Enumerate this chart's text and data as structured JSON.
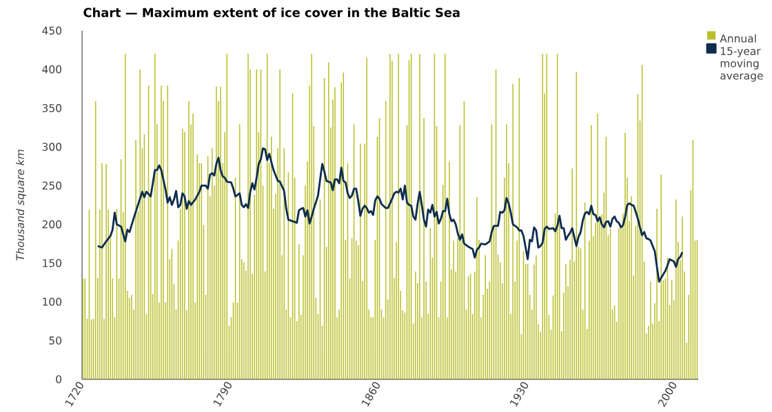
{
  "chart_data": {
    "type": "bar",
    "title": "Chart — Maximum extent of ice cover in the Baltic Sea",
    "ylabel": "Thousand square km",
    "x": [
      1720,
      1721,
      1722,
      1723,
      1724,
      1725,
      1726,
      1727,
      1728,
      1729,
      1730,
      1731,
      1732,
      1733,
      1734,
      1735,
      1736,
      1737,
      1738,
      1739,
      1740,
      1741,
      1742,
      1743,
      1744,
      1745,
      1746,
      1747,
      1748,
      1749,
      1750,
      1751,
      1752,
      1753,
      1754,
      1755,
      1756,
      1757,
      1758,
      1759,
      1760,
      1761,
      1762,
      1763,
      1764,
      1765,
      1766,
      1767,
      1768,
      1769,
      1770,
      1771,
      1772,
      1773,
      1774,
      1775,
      1776,
      1777,
      1778,
      1779,
      1780,
      1781,
      1782,
      1783,
      1784,
      1785,
      1786,
      1787,
      1788,
      1789,
      1790,
      1791,
      1792,
      1793,
      1794,
      1795,
      1796,
      1797,
      1798,
      1799,
      1800,
      1801,
      1802,
      1803,
      1804,
      1805,
      1806,
      1807,
      1808,
      1809,
      1810,
      1811,
      1812,
      1813,
      1814,
      1815,
      1816,
      1817,
      1818,
      1819,
      1820,
      1821,
      1822,
      1823,
      1824,
      1825,
      1826,
      1827,
      1828,
      1829,
      1830,
      1831,
      1832,
      1833,
      1834,
      1835,
      1836,
      1837,
      1838,
      1839,
      1840,
      1841,
      1842,
      1843,
      1844,
      1845,
      1846,
      1847,
      1848,
      1849,
      1850,
      1851,
      1852,
      1853,
      1854,
      1855,
      1856,
      1857,
      1858,
      1859,
      1860,
      1861,
      1862,
      1863,
      1864,
      1865,
      1866,
      1867,
      1868,
      1869,
      1870,
      1871,
      1872,
      1873,
      1874,
      1875,
      1876,
      1877,
      1878,
      1879,
      1880,
      1881,
      1882,
      1883,
      1884,
      1885,
      1886,
      1887,
      1888,
      1889,
      1890,
      1891,
      1892,
      1893,
      1894,
      1895,
      1896,
      1897,
      1898,
      1899,
      1900,
      1901,
      1902,
      1903,
      1904,
      1905,
      1906,
      1907,
      1908,
      1909,
      1910,
      1911,
      1912,
      1913,
      1914,
      1915,
      1916,
      1917,
      1918,
      1919,
      1920,
      1921,
      1922,
      1923,
      1924,
      1925,
      1926,
      1927,
      1928,
      1929,
      1930,
      1931,
      1932,
      1933,
      1934,
      1935,
      1936,
      1937,
      1938,
      1939,
      1940,
      1941,
      1942,
      1943,
      1944,
      1945,
      1946,
      1947,
      1948,
      1949,
      1950,
      1951,
      1952,
      1953,
      1954,
      1955,
      1956,
      1957,
      1958,
      1959,
      1960,
      1961,
      1962,
      1963,
      1964,
      1965,
      1966,
      1967,
      1968,
      1969,
      1970,
      1971,
      1972,
      1973,
      1974,
      1975,
      1976,
      1977,
      1978,
      1979,
      1980,
      1981,
      1982,
      1983,
      1984,
      1985,
      1986,
      1987,
      1988,
      1989,
      1990,
      1991,
      1992,
      1993,
      1994,
      1995,
      1996,
      1997,
      1998,
      1999,
      2000,
      2001,
      2002,
      2003,
      2004,
      2005,
      2006,
      2007,
      2008,
      2009,
      2010
    ],
    "series": [
      {
        "name": "Annual",
        "color": "#b9bf2a",
        "values": [
          130,
          130,
          78,
          219,
          77,
          78,
          359,
          131,
          219,
          279,
          78,
          278,
          219,
          182,
          130,
          80,
          220,
          130,
          284,
          216,
          420,
          114,
          105,
          109,
          90,
          309,
          217,
          400,
          298,
          316,
          84,
          379,
          238,
          110,
          420,
          329,
          99,
          379,
          359,
          99,
          379,
          155,
          168,
          123,
          90,
          179,
          220,
          323,
          319,
          89,
          359,
          329,
          343,
          99,
          290,
          279,
          279,
          199,
          109,
          288,
          236,
          298,
          250,
          378,
          359,
          378,
          279,
          319,
          420,
          69,
          80,
          99,
          260,
          99,
          329,
          155,
          151,
          140,
          420,
          400,
          136,
          238,
          400,
          319,
          400,
          250,
          139,
          420,
          279,
          313,
          220,
          239,
          298,
          400,
          160,
          298,
          90,
          267,
          80,
          369,
          260,
          75,
          174,
          83,
          160,
          250,
          281,
          379,
          420,
          327,
          105,
          84,
          232,
          69,
          389,
          171,
          409,
          325,
          361,
          377,
          80,
          90,
          383,
          396,
          180,
          279,
          130,
          182,
          329,
          179,
          173,
          304,
          127,
          304,
          415,
          90,
          80,
          80,
          180,
          313,
          337,
          90,
          80,
          359,
          103,
          420,
          411,
          131,
          177,
          420,
          114,
          89,
          86,
          328,
          412,
          420,
          72,
          139,
          124,
          420,
          80,
          337,
          126,
          84,
          195,
          157,
          420,
          327,
          80,
          126,
          251,
          420,
          80,
          281,
          142,
          179,
          139,
          182,
          328,
          179,
          359,
          90,
          133,
          136,
          84,
          139,
          235,
          180,
          80,
          109,
          160,
          117,
          126,
          329,
          198,
          400,
          161,
          151,
          124,
          260,
          329,
          279,
          84,
          381,
          126,
          179,
          389,
          58,
          165,
          149,
          149,
          109,
          90,
          148,
          160,
          71,
          61,
          420,
          369,
          420,
          83,
          64,
          108,
          214,
          420,
          202,
          62,
          112,
          149,
          120,
          154,
          272,
          152,
          397,
          171,
          169,
          90,
          228,
          65,
          179,
          328,
          185,
          202,
          343,
          204,
          213,
          241,
          313,
          186,
          194,
          90,
          95,
          74,
          195,
          195,
          214,
          318,
          260,
          204,
          236,
          134,
          198,
          368,
          334,
          406,
          152,
          59,
          69,
          126,
          72,
          98,
          220,
          75,
          264,
          128,
          130,
          157,
          96,
          128,
          102,
          232,
          177,
          154,
          210,
          139,
          47,
          109,
          244,
          309,
          179,
          180
        ]
      },
      {
        "name": "15-year moving average",
        "type": "line",
        "color": "#0f2d4d",
        "x": [
          1727,
          1729,
          1731,
          1733,
          1734,
          1735,
          1736,
          1738,
          1740,
          1741,
          1742,
          1744,
          1746,
          1748,
          1749,
          1750,
          1752,
          1754,
          1755,
          1756,
          1757,
          1759,
          1760,
          1761,
          1762,
          1763,
          1764,
          1765,
          1766,
          1767,
          1768,
          1769,
          1770,
          1771,
          1773,
          1775,
          1776,
          1778,
          1779,
          1780,
          1781,
          1782,
          1783,
          1784,
          1785,
          1786,
          1787,
          1788,
          1790,
          1791,
          1792,
          1794,
          1795,
          1796,
          1797,
          1798,
          1799,
          1800,
          1801,
          1802,
          1803,
          1804,
          1805,
          1806,
          1807,
          1808,
          1809,
          1810,
          1812,
          1813,
          1815,
          1816,
          1817,
          1819,
          1821,
          1822,
          1823,
          1824,
          1825,
          1826,
          1827,
          1828,
          1829,
          1831,
          1832,
          1833,
          1834,
          1835,
          1837,
          1838,
          1839,
          1840,
          1841,
          1842,
          1843,
          1844,
          1845,
          1846,
          1847,
          1848,
          1849,
          1850,
          1851,
          1852,
          1853,
          1854,
          1855,
          1856,
          1857,
          1858,
          1859,
          1860,
          1861,
          1863,
          1864,
          1866,
          1867,
          1868,
          1869,
          1870,
          1871,
          1872,
          1873,
          1874,
          1875,
          1876,
          1877,
          1878,
          1879,
          1880,
          1881,
          1882,
          1883,
          1884,
          1885,
          1886,
          1887,
          1888,
          1889,
          1890,
          1891,
          1892,
          1893,
          1894,
          1895,
          1896,
          1897,
          1898,
          1899,
          1900,
          1901,
          1902,
          1904,
          1905,
          1906,
          1907,
          1908,
          1910,
          1912,
          1913,
          1914,
          1916,
          1917,
          1918,
          1919,
          1920,
          1921,
          1922,
          1923,
          1924,
          1925,
          1926,
          1927,
          1928,
          1929,
          1930,
          1931,
          1932,
          1933,
          1934,
          1935,
          1936,
          1937,
          1938,
          1939,
          1940,
          1942,
          1943,
          1944,
          1945,
          1946,
          1947,
          1948,
          1949,
          1950,
          1951,
          1952,
          1953,
          1954,
          1955,
          1956,
          1957,
          1958,
          1959,
          1960,
          1961,
          1962,
          1963,
          1964,
          1965,
          1966,
          1967,
          1968,
          1969,
          1970,
          1971,
          1972,
          1973,
          1974,
          1975,
          1976,
          1977,
          1978,
          1979,
          1980,
          1981,
          1982,
          1983,
          1984,
          1985,
          1986,
          1987,
          1988,
          1990,
          1991,
          1992,
          1993,
          1995,
          1996,
          1997,
          1999,
          2000,
          2001,
          2002,
          2003
        ],
        "values": [
          172,
          170,
          178,
          185,
          193,
          215,
          200,
          197,
          178,
          193,
          190,
          208,
          225,
          242,
          235,
          242,
          236,
          270,
          270,
          276,
          270,
          245,
          228,
          235,
          225,
          232,
          243,
          222,
          225,
          240,
          236,
          220,
          230,
          225,
          232,
          242,
          250,
          250,
          246,
          264,
          266,
          263,
          278,
          286,
          270,
          262,
          260,
          255,
          254,
          246,
          236,
          240,
          225,
          222,
          226,
          221,
          242,
          253,
          245,
          260,
          278,
          284,
          298,
          297,
          283,
          291,
          280,
          270,
          256,
          255,
          243,
          220,
          206,
          204,
          202,
          218,
          220,
          221,
          210,
          218,
          201,
          210,
          220,
          237,
          258,
          278,
          268,
          256,
          254,
          244,
          258,
          258,
          253,
          273,
          256,
          254,
          240,
          234,
          237,
          246,
          246,
          230,
          211,
          220,
          224,
          221,
          215,
          217,
          212,
          231,
          236,
          233,
          226,
          221,
          221,
          233,
          240,
          242,
          241,
          246,
          232,
          250,
          228,
          225,
          224,
          210,
          206,
          226,
          242,
          225,
          206,
          197,
          219,
          215,
          225,
          210,
          216,
          201,
          207,
          217,
          217,
          233,
          213,
          204,
          206,
          200,
          188,
          180,
          187,
          175,
          173,
          171,
          168,
          157,
          167,
          170,
          175,
          174,
          178,
          190,
          198,
          198,
          216,
          215,
          218,
          234,
          227,
          215,
          200,
          198,
          196,
          192,
          192,
          185,
          170,
          155,
          180,
          178,
          196,
          192,
          170,
          172,
          176,
          194,
          197,
          194,
          195,
          191,
          198,
          211,
          195,
          195,
          180,
          185,
          189,
          195,
          183,
          172,
          184,
          190,
          205,
          214,
          216,
          213,
          224,
          213,
          212,
          204,
          209,
          200,
          196,
          203,
          204,
          197,
          207,
          210,
          204,
          202,
          196,
          199,
          210,
          225,
          227,
          225,
          224,
          216,
          207,
          196,
          186,
          190,
          182,
          181,
          179,
          165,
          145,
          126,
          131,
          140,
          147,
          155,
          152,
          145,
          155,
          158,
          164
        ]
      }
    ],
    "xlim": [
      1719.6,
      2010.6
    ],
    "xticks": [
      1720,
      1790,
      1860,
      1930,
      2000
    ],
    "ylim": [
      0,
      450
    ],
    "yticks": [
      0,
      50,
      100,
      150,
      200,
      250,
      300,
      350,
      400,
      450
    ],
    "legend": "top right"
  }
}
